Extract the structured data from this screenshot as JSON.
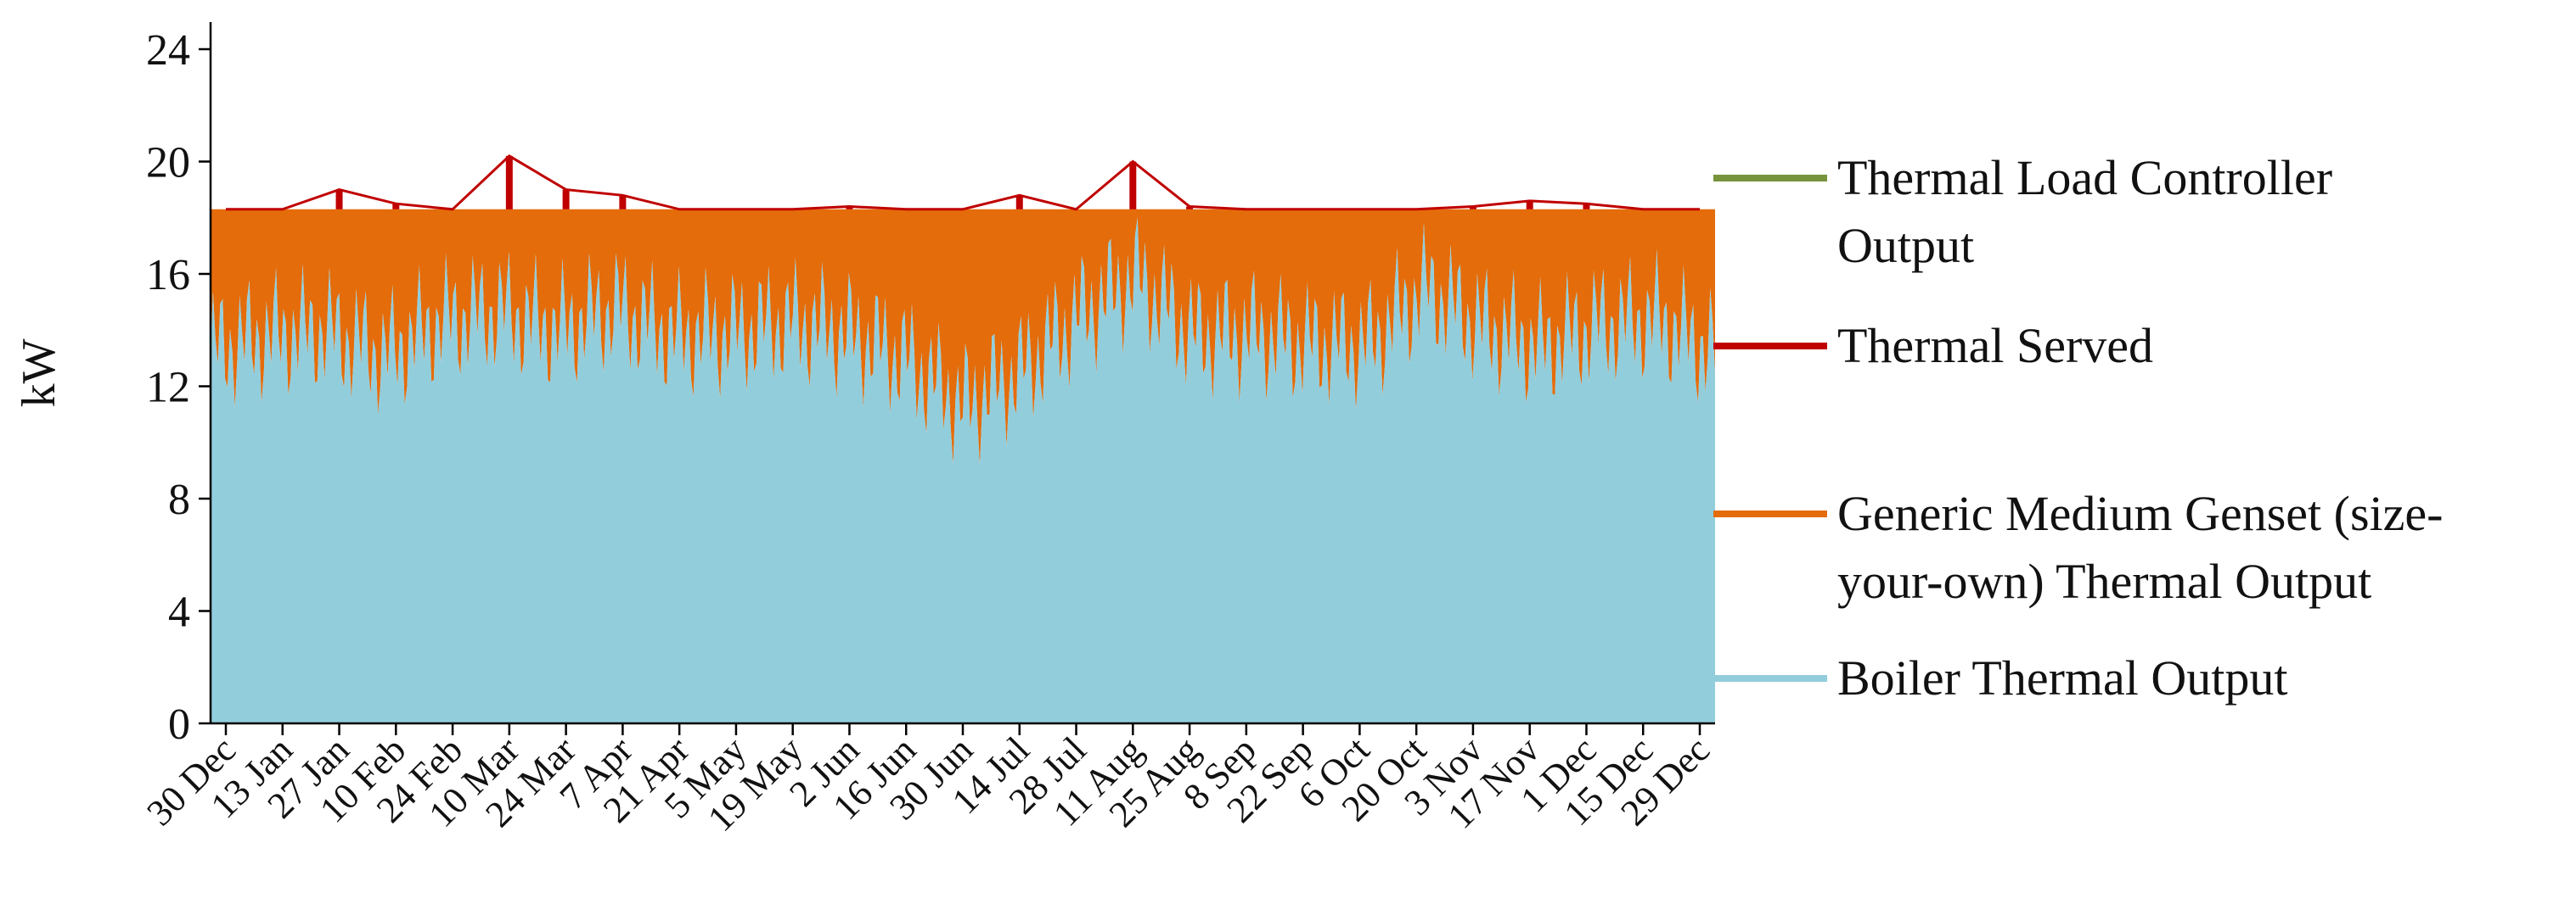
{
  "chart_data": {
    "type": "area",
    "title": "",
    "xlabel": "",
    "ylabel": "kW",
    "ylim": [
      0,
      24
    ],
    "yticks": [
      0,
      4,
      8,
      12,
      16,
      20,
      24
    ],
    "grid": false,
    "legend_position": "right",
    "x_range": [
      "30 Dec",
      "29 Dec"
    ],
    "categories": [
      "30 Dec",
      "13 Jan",
      "27 Jan",
      "10 Feb",
      "24 Feb",
      "10 Mar",
      "24 Mar",
      "7 Apr",
      "21 Apr",
      "5 May",
      "19 May",
      "2 Jun",
      "16 Jun",
      "30 Jun",
      "14 Jul",
      "28 Jul",
      "11 Aug",
      "25 Aug",
      "8 Sep",
      "22 Sep",
      "6 Oct",
      "20 Oct",
      "3 Nov",
      "17 Nov",
      "1 Dec",
      "15 Dec",
      "29 Dec"
    ],
    "series": [
      {
        "name": "Thermal Load Controller Output",
        "color": "#77933c",
        "values": [
          0,
          0,
          0,
          0,
          0,
          0,
          0,
          0,
          0,
          0,
          0,
          0,
          0,
          0,
          0,
          0,
          0,
          0,
          0,
          0,
          0,
          0,
          0,
          0,
          0,
          0,
          0
        ]
      },
      {
        "name": "Thermal Served",
        "color": "#c00000",
        "values": [
          18.3,
          18.3,
          19.0,
          18.5,
          18.3,
          20.2,
          19.0,
          18.8,
          18.3,
          18.3,
          18.3,
          18.4,
          18.3,
          18.3,
          18.8,
          18.3,
          20.0,
          18.4,
          18.3,
          18.3,
          18.3,
          18.3,
          18.4,
          18.6,
          18.5,
          18.3,
          18.3
        ]
      },
      {
        "name": "Generic Medium Genset (size-your-own) Thermal Output",
        "color": "#e46c0a",
        "values": [
          5.0,
          4.5,
          4.3,
          5.2,
          4.0,
          3.6,
          4.3,
          3.5,
          4.5,
          4.4,
          4.0,
          4.4,
          5.3,
          7.0,
          5.8,
          3.8,
          2.4,
          4.5,
          4.4,
          4.8,
          4.8,
          2.8,
          4.2,
          4.9,
          4.1,
          3.9,
          5.1
        ]
      },
      {
        "name": "Boiler Thermal Output",
        "color": "#92cddc",
        "values": [
          13.3,
          13.8,
          14.0,
          13.1,
          14.3,
          14.7,
          14.0,
          14.8,
          13.8,
          13.9,
          14.3,
          13.9,
          13.0,
          11.3,
          12.5,
          14.5,
          15.9,
          13.8,
          13.9,
          13.5,
          13.5,
          15.5,
          14.1,
          13.4,
          14.2,
          14.4,
          13.2
        ]
      }
    ]
  }
}
